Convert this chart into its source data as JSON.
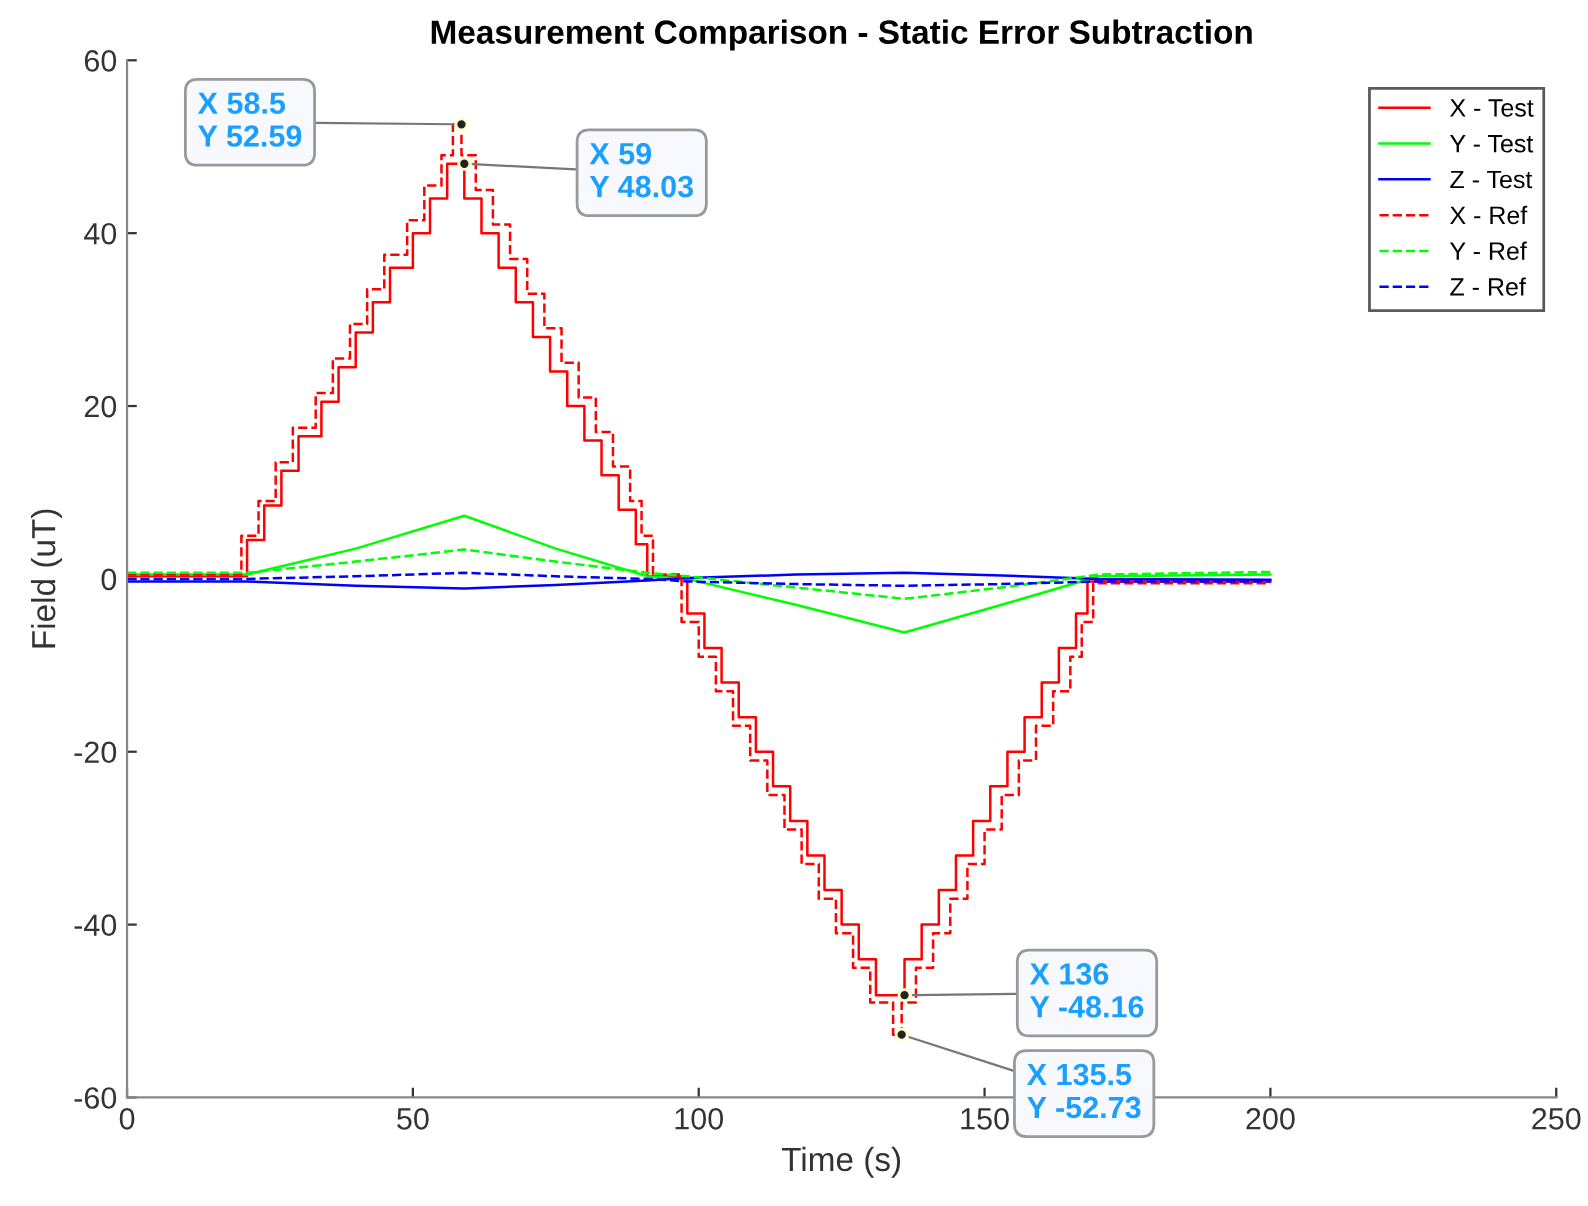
{
  "chart_data": {
    "type": "line",
    "title": "Measurement Comparison - Static Error Subtraction",
    "xlabel": "Time (s)",
    "ylabel": "Field (uT)",
    "xlim": [
      0,
      250
    ],
    "xticks": [
      0,
      50,
      100,
      150,
      200,
      250
    ],
    "ylim": [
      -60,
      60
    ],
    "yticks": [
      -60,
      -40,
      -20,
      0,
      20,
      40,
      60
    ],
    "grid": false,
    "legend": "top right",
    "marker": "none",
    "series": [
      {
        "name": "X - Test",
        "color": "#ff0000",
        "line_style": "solid",
        "x": [
          0,
          21,
          21,
          24,
          24,
          27,
          27,
          30,
          30,
          34,
          34,
          37,
          37,
          40,
          40,
          43,
          43,
          46,
          46,
          50,
          50,
          53,
          53,
          56,
          56,
          59,
          59,
          62,
          62,
          65,
          65,
          68,
          68,
          71,
          71,
          74,
          74,
          77,
          77,
          80,
          80,
          83,
          83,
          86,
          86,
          89,
          89,
          91,
          91,
          98,
          98,
          101,
          101,
          104,
          104,
          107,
          107,
          110,
          110,
          113,
          113,
          116,
          116,
          119,
          119,
          122,
          122,
          125,
          125,
          128,
          128,
          131,
          131,
          136,
          136,
          139,
          139,
          142,
          142,
          145,
          145,
          148,
          148,
          151,
          151,
          154,
          154,
          157,
          157,
          160,
          160,
          163,
          163,
          166,
          166,
          168,
          168,
          200
        ],
        "values": [
          0.3,
          0.3,
          4.5,
          4.5,
          8.5,
          8.5,
          12.5,
          12.5,
          16.5,
          16.5,
          20.5,
          20.5,
          24.5,
          24.5,
          28.5,
          28.5,
          32,
          32,
          36,
          36,
          40,
          40,
          44,
          44,
          48.03,
          48.03,
          44,
          44,
          40,
          40,
          36,
          36,
          32,
          32,
          28,
          28,
          24,
          24,
          20,
          20,
          16,
          16,
          12,
          12,
          8,
          8,
          4,
          4,
          0.3,
          0.3,
          -4,
          -4,
          -8,
          -8,
          -12,
          -12,
          -16,
          -16,
          -20,
          -20,
          -24,
          -24,
          -28,
          -28,
          -32,
          -32,
          -36,
          -36,
          -40,
          -40,
          -44,
          -44,
          -48.16,
          -48.16,
          -44,
          -44,
          -40,
          -40,
          -36,
          -36,
          -32,
          -32,
          -28,
          -28,
          -24,
          -24,
          -20,
          -20,
          -16,
          -16,
          -12,
          -12,
          -8,
          -8,
          -4,
          -4,
          -0.3,
          -0.3
        ]
      },
      {
        "name": "Y - Test",
        "color": "#00ff00",
        "line_style": "solid",
        "x": [
          0,
          21,
          40,
          59,
          75,
          91,
          98,
          117,
          136,
          153,
          170,
          200
        ],
        "values": [
          0.5,
          0.5,
          3.5,
          7.3,
          3.5,
          0.3,
          0,
          -3,
          -6.2,
          -3,
          0.3,
          0.5
        ]
      },
      {
        "name": "Z - Test",
        "color": "#0000ff",
        "line_style": "solid",
        "x": [
          0,
          21,
          40,
          59,
          75,
          91,
          98,
          117,
          136,
          153,
          170,
          200
        ],
        "values": [
          -0.3,
          -0.3,
          -0.8,
          -1.1,
          -0.7,
          -0.2,
          0.1,
          0.5,
          0.7,
          0.4,
          0,
          -0.1
        ]
      },
      {
        "name": "X - Ref",
        "color": "#ff0000",
        "line_style": "dashed",
        "x": [
          0,
          20,
          20,
          23,
          23,
          26,
          26,
          29,
          29,
          33,
          33,
          36,
          36,
          39,
          39,
          42,
          42,
          45,
          45,
          49,
          49,
          52,
          52,
          55,
          55,
          57,
          57,
          58.5,
          58.5,
          61,
          61,
          64,
          64,
          67,
          67,
          70,
          70,
          73,
          73,
          76,
          76,
          79,
          79,
          82,
          82,
          85,
          85,
          88,
          88,
          90,
          90,
          92,
          92,
          97,
          97,
          100,
          100,
          103,
          103,
          106,
          106,
          109,
          109,
          112,
          112,
          115,
          115,
          118,
          118,
          121,
          121,
          124,
          124,
          127,
          127,
          130,
          130,
          134,
          134,
          135.5,
          135.5,
          138,
          138,
          141,
          141,
          144,
          144,
          147,
          147,
          150,
          150,
          153,
          153,
          156,
          156,
          159,
          159,
          162,
          162,
          165,
          165,
          167,
          167,
          169,
          169,
          200
        ],
        "values": [
          0.5,
          0.5,
          5,
          5,
          9,
          9,
          13.5,
          13.5,
          17.5,
          17.5,
          21.5,
          21.5,
          25.5,
          25.5,
          29.5,
          29.5,
          33.5,
          33.5,
          37.5,
          37.5,
          41.5,
          41.5,
          45.5,
          45.5,
          49,
          49,
          52.59,
          52.59,
          49,
          49,
          45,
          45,
          41,
          41,
          37,
          37,
          33,
          33,
          29,
          29,
          25,
          25,
          21,
          21,
          17,
          17,
          13,
          13,
          9,
          9,
          5,
          5,
          0.5,
          0.5,
          -5,
          -5,
          -9,
          -9,
          -13,
          -13,
          -17,
          -17,
          -21,
          -21,
          -25,
          -25,
          -29,
          -29,
          -33,
          -33,
          -37,
          -37,
          -41,
          -41,
          -45,
          -45,
          -49,
          -49,
          -52.73,
          -52.73,
          -49,
          -49,
          -45,
          -45,
          -41,
          -41,
          -37,
          -37,
          -33,
          -33,
          -29,
          -29,
          -25,
          -25,
          -21,
          -21,
          -17,
          -17,
          -13,
          -13,
          -9,
          -9,
          -5,
          -5,
          -0.5,
          -0.5
        ]
      },
      {
        "name": "Y - Ref",
        "color": "#00ff00",
        "line_style": "dashed",
        "x": [
          0,
          21,
          40,
          59,
          75,
          91,
          98,
          117,
          136,
          153,
          170,
          200
        ],
        "values": [
          0.7,
          0.7,
          2,
          3.4,
          2,
          0.7,
          0.3,
          -1,
          -2.3,
          -1,
          0.5,
          0.8
        ]
      },
      {
        "name": "Z - Ref",
        "color": "#0000ff",
        "line_style": "dashed",
        "x": [
          0,
          21,
          40,
          59,
          75,
          91,
          98,
          117,
          136,
          153,
          170,
          200
        ],
        "values": [
          0,
          0,
          0.3,
          0.7,
          0.3,
          0,
          -0.3,
          -0.6,
          -0.8,
          -0.6,
          -0.3,
          -0.3
        ]
      }
    ],
    "annotations": [
      {
        "text": "X 58.5\nY 52.59",
        "x": 58.5,
        "y": 52.59
      },
      {
        "text": "X 59\nY 48.03",
        "x": 59,
        "y": 48.03
      },
      {
        "text": "X 136\nY -48.16",
        "x": 136,
        "y": -48.16
      },
      {
        "text": "X 135.5\nY -52.73",
        "x": 135.5,
        "y": -52.73
      }
    ]
  }
}
